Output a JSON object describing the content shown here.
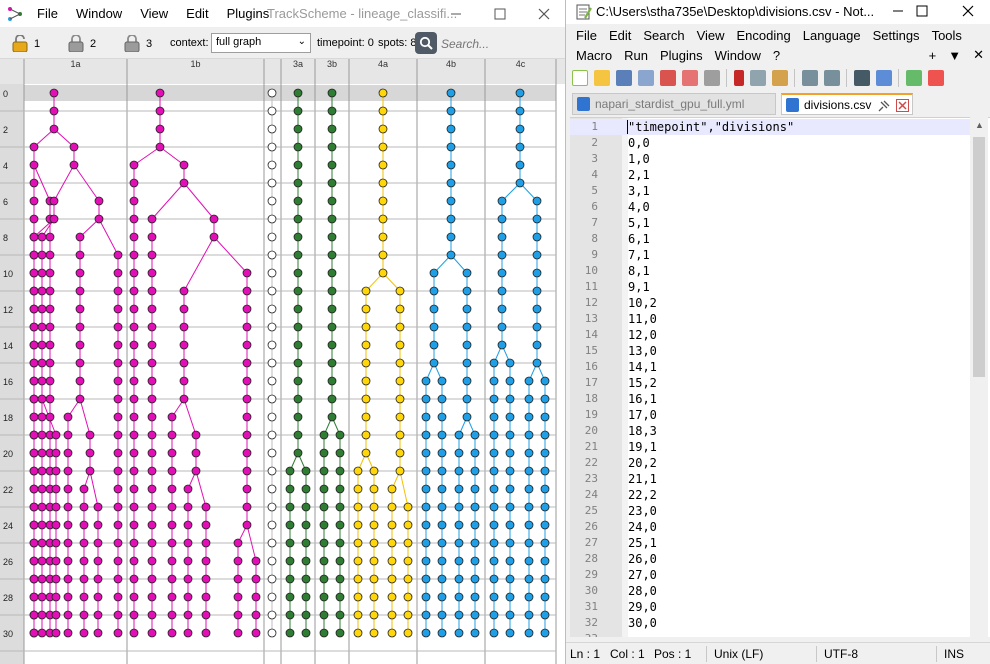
{
  "trackscheme": {
    "menu": [
      "File",
      "Window",
      "View",
      "Edit",
      "Plugins"
    ],
    "title": "TrackScheme - lineage_classifi...",
    "window_controls": [
      "minimize",
      "maximize",
      "close"
    ],
    "locks": [
      {
        "label": "1",
        "locked": false
      },
      {
        "label": "2",
        "locked": true
      },
      {
        "label": "3",
        "locked": true
      }
    ],
    "context_label": "context:",
    "context_value": "full graph",
    "timepoint_label": "timepoint: 0",
    "spots_label": "spots: 8",
    "search_placeholder": "Search...",
    "columns": [
      {
        "label": "1a",
        "color": "#e20fb6"
      },
      {
        "label": "1b",
        "color": "#e20fb6"
      },
      {
        "label": "",
        "color": "#ffffff"
      },
      {
        "label": "3a",
        "color": "#2e7d32"
      },
      {
        "label": "3b",
        "color": "#2e7d32"
      },
      {
        "label": "4a",
        "color": "#ffd60a"
      },
      {
        "label": "4b",
        "color": "#1e9fe6"
      },
      {
        "label": "4c",
        "color": "#1e9fe6"
      }
    ],
    "timepoint_labels": [
      "0",
      "2",
      "4",
      "6",
      "8",
      "10",
      "12",
      "14",
      "16",
      "18",
      "20",
      "22",
      "24",
      "26",
      "28",
      "30"
    ]
  },
  "notepad": {
    "title": "C:\\Users\\stha735e\\Desktop\\divisions.csv - Not...",
    "menu_row1": [
      "File",
      "Edit",
      "Search",
      "View",
      "Encoding",
      "Language",
      "Settings",
      "Tools"
    ],
    "menu_row2": [
      "Macro",
      "Run",
      "Plugins",
      "Window",
      "?"
    ],
    "menu_right": [
      "+",
      "▼",
      "✕"
    ],
    "window_controls": [
      "minimize",
      "maximize",
      "close"
    ],
    "tabs": [
      {
        "label": "napari_stardist_gpu_full.yml",
        "active": false
      },
      {
        "label": "divisions.csv",
        "active": true
      }
    ],
    "lines": [
      "\"timepoint\",\"divisions\"",
      "0,0",
      "1,0",
      "2,1",
      "3,1",
      "4,0",
      "5,1",
      "6,1",
      "7,1",
      "8,1",
      "9,1",
      "10,2",
      "11,0",
      "12,0",
      "13,0",
      "14,1",
      "15,2",
      "16,1",
      "17,0",
      "18,3",
      "19,1",
      "20,2",
      "21,1",
      "22,2",
      "23,0",
      "24,0",
      "25,1",
      "26,0",
      "27,0",
      "28,0",
      "29,0",
      "30,0",
      ""
    ],
    "status": {
      "ln": "Ln : 1",
      "col": "Col : 1",
      "pos": "Pos : 1",
      "eol": "Unix (LF)",
      "encoding": "UTF-8",
      "mode": "INS"
    }
  }
}
